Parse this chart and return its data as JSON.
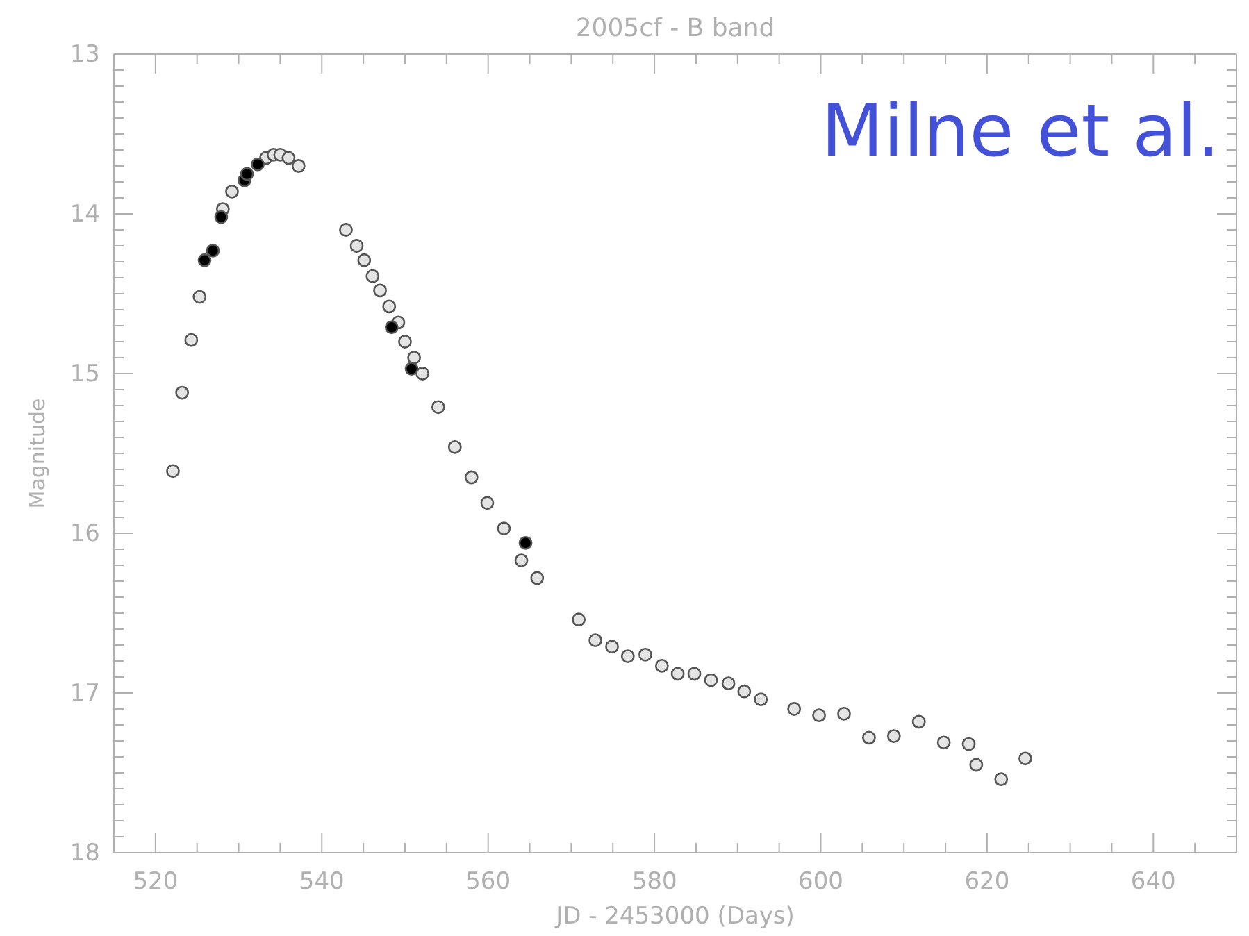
{
  "chart_data": {
    "type": "scatter",
    "title": "2005cf - B band",
    "xlabel": "JD - 2453000 (Days)",
    "ylabel": "Magnitude",
    "annotations": [
      "Milne et al."
    ],
    "marker": "circle",
    "grid": false,
    "xlim": [
      515,
      650
    ],
    "ylim": [
      18,
      13
    ],
    "xticks": [
      520,
      {
        "value": 525,
        "label": null
      },
      {
        "value": 530,
        "label": null
      },
      {
        "value": 535,
        "label": null
      },
      540,
      {
        "value": 545,
        "label": null
      },
      {
        "value": 550,
        "label": null
      },
      {
        "value": 555,
        "label": null
      },
      560,
      {
        "value": 565,
        "label": null
      },
      {
        "value": 570,
        "label": null
      },
      {
        "value": 575,
        "label": null
      },
      580,
      {
        "value": 585,
        "label": null
      },
      {
        "value": 590,
        "label": null
      },
      {
        "value": 595,
        "label": null
      },
      600,
      {
        "value": 605,
        "label": null
      },
      {
        "value": 610,
        "label": null
      },
      {
        "value": 615,
        "label": null
      },
      620,
      {
        "value": 625,
        "label": null
      },
      {
        "value": 630,
        "label": null
      },
      {
        "value": 635,
        "label": null
      },
      640,
      {
        "value": 645,
        "label": null
      }
    ],
    "yticks": [
      13,
      {
        "value": 13.1,
        "label": null
      },
      {
        "value": 13.2,
        "label": null
      },
      {
        "value": 13.3,
        "label": null
      },
      {
        "value": 13.4,
        "label": null
      },
      {
        "value": 13.5,
        "label": null
      },
      {
        "value": 13.6,
        "label": null
      },
      {
        "value": 13.7,
        "label": null
      },
      {
        "value": 13.8,
        "label": null
      },
      {
        "value": 13.9,
        "label": null
      },
      14,
      {
        "value": 14.1,
        "label": null
      },
      {
        "value": 14.2,
        "label": null
      },
      {
        "value": 14.3,
        "label": null
      },
      {
        "value": 14.4,
        "label": null
      },
      {
        "value": 14.5,
        "label": null
      },
      {
        "value": 14.6,
        "label": null
      },
      {
        "value": 14.7,
        "label": null
      },
      {
        "value": 14.8,
        "label": null
      },
      {
        "value": 14.9,
        "label": null
      },
      15,
      {
        "value": 15.1,
        "label": null
      },
      {
        "value": 15.2,
        "label": null
      },
      {
        "value": 15.3,
        "label": null
      },
      {
        "value": 15.4,
        "label": null
      },
      {
        "value": 15.5,
        "label": null
      },
      {
        "value": 15.6,
        "label": null
      },
      {
        "value": 15.7,
        "label": null
      },
      {
        "value": 15.8,
        "label": null
      },
      {
        "value": 15.9,
        "label": null
      },
      16,
      {
        "value": 16.1,
        "label": null
      },
      {
        "value": 16.2,
        "label": null
      },
      {
        "value": 16.3,
        "label": null
      },
      {
        "value": 16.4,
        "label": null
      },
      {
        "value": 16.5,
        "label": null
      },
      {
        "value": 16.6,
        "label": null
      },
      {
        "value": 16.7,
        "label": null
      },
      {
        "value": 16.8,
        "label": null
      },
      {
        "value": 16.9,
        "label": null
      },
      17,
      {
        "value": 17.1,
        "label": null
      },
      {
        "value": 17.2,
        "label": null
      },
      {
        "value": 17.3,
        "label": null
      },
      {
        "value": 17.4,
        "label": null
      },
      {
        "value": 17.5,
        "label": null
      },
      {
        "value": 17.6,
        "label": null
      },
      {
        "value": 17.7,
        "label": null
      },
      {
        "value": 17.8,
        "label": null
      },
      {
        "value": 17.9,
        "label": null
      },
      18
    ],
    "series": [
      {
        "color": "#e4e4e4",
        "x": [
          522.1,
          523.2,
          524.3,
          525.3,
          528.1,
          529.2,
          533.3,
          534.2,
          535.0,
          536.0,
          537.2,
          542.9,
          544.2,
          545.1,
          546.1,
          547.0,
          548.1,
          549.2,
          550.0,
          551.1,
          552.1,
          554.0,
          556.0,
          558.0,
          559.9,
          561.9,
          564.0,
          565.9,
          570.9,
          572.9,
          574.9,
          576.8,
          578.9,
          580.9,
          582.8,
          584.8,
          586.8,
          588.9,
          590.8,
          592.8,
          596.8,
          599.8,
          602.8,
          605.8,
          608.8,
          611.8,
          614.8,
          617.8,
          618.7,
          621.7,
          624.6
        ],
        "values": [
          15.61,
          15.12,
          14.79,
          14.52,
          13.97,
          13.86,
          13.65,
          13.63,
          13.63,
          13.65,
          13.7,
          14.1,
          14.2,
          14.29,
          14.39,
          14.48,
          14.58,
          14.68,
          14.8,
          14.9,
          15.0,
          15.21,
          15.46,
          15.65,
          15.81,
          15.97,
          16.17,
          16.28,
          16.54,
          16.67,
          16.71,
          16.77,
          16.76,
          16.83,
          16.88,
          16.88,
          16.92,
          16.94,
          16.99,
          17.04,
          17.1,
          17.14,
          17.13,
          17.28,
          17.27,
          17.18,
          17.31,
          17.32,
          17.45,
          17.54,
          17.41
        ]
      },
      {
        "color": "#000000",
        "x": [
          525.9,
          526.9,
          527.9,
          530.7,
          531.0,
          532.3,
          548.4,
          550.8,
          564.5
        ],
        "values": [
          14.29,
          14.23,
          14.02,
          13.79,
          13.75,
          13.69,
          14.71,
          14.97,
          16.06
        ]
      }
    ]
  }
}
